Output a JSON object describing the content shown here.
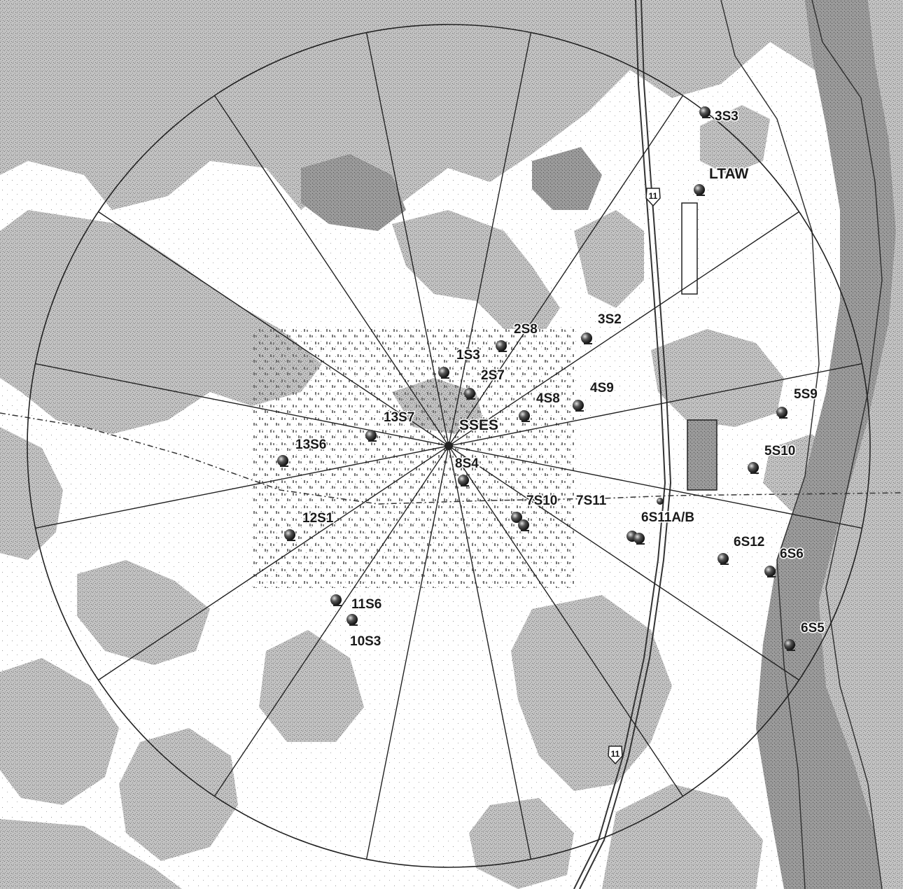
{
  "map": {
    "center_label": "SSES",
    "route_shields": [
      "11",
      "11"
    ],
    "stations": [
      {
        "id": "3S3",
        "label": "3S3"
      },
      {
        "id": "LTAW",
        "label": "LTAW"
      },
      {
        "id": "2S8",
        "label": "2S8"
      },
      {
        "id": "3S2",
        "label": "3S2"
      },
      {
        "id": "1S3",
        "label": "1S3"
      },
      {
        "id": "2S7",
        "label": "2S7"
      },
      {
        "id": "4S8",
        "label": "4S8"
      },
      {
        "id": "4S9",
        "label": "4S9"
      },
      {
        "id": "5S9",
        "label": "5S9"
      },
      {
        "id": "5S10",
        "label": "5S10"
      },
      {
        "id": "13S7",
        "label": "13S7"
      },
      {
        "id": "13S6",
        "label": "13S6"
      },
      {
        "id": "8S4",
        "label": "8S4"
      },
      {
        "id": "7S10",
        "label": "7S10"
      },
      {
        "id": "7S11",
        "label": "7S11"
      },
      {
        "id": "6S11A/B",
        "label": "6S11A/B"
      },
      {
        "id": "12S1",
        "label": "12S1"
      },
      {
        "id": "6S12",
        "label": "6S12"
      },
      {
        "id": "6S6",
        "label": "6S6"
      },
      {
        "id": "11S6",
        "label": "11S6"
      },
      {
        "id": "10S3",
        "label": "10S3"
      },
      {
        "id": "6S5",
        "label": "6S5"
      }
    ],
    "colors": {
      "terrain": "#bdbdbd",
      "terrain_dark": "#8e8e8e",
      "ink": "#1a1a1a",
      "marker": "#2b2b2b"
    }
  }
}
